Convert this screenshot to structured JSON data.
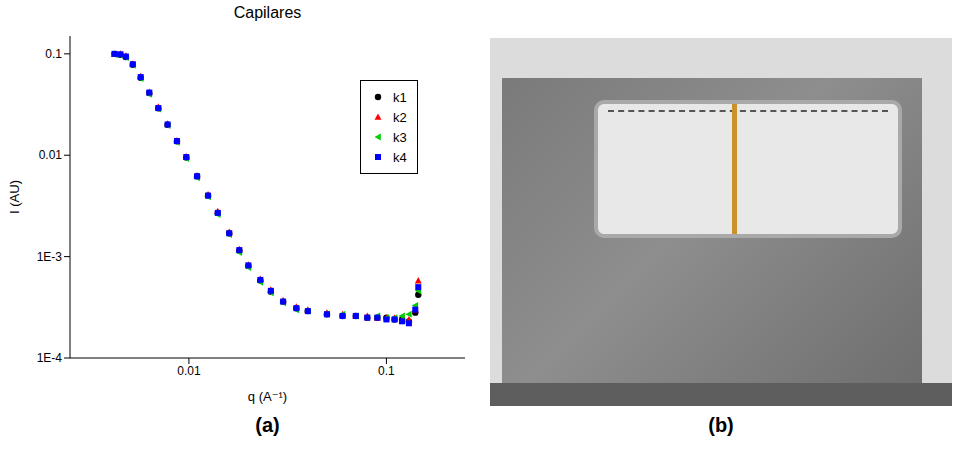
{
  "chart_data": {
    "type": "scatter",
    "title": "Capilares",
    "x_label": "q (A⁻¹)",
    "y_label": "I (AU)",
    "log": true,
    "grid": false,
    "legend": "upper right",
    "xlim": [
      0.0025,
      0.25
    ],
    "ylim": [
      0.0001,
      0.15
    ],
    "xticks": [
      0.01,
      0.1
    ],
    "yticks": [
      0.1,
      0.01,
      {
        "value": 0.001,
        "label": "1E-3"
      },
      {
        "value": 0.0001,
        "label": "1E-4"
      }
    ],
    "x": [
      0.0042,
      0.0045,
      0.0048,
      0.0052,
      0.0057,
      0.0063,
      0.007,
      0.0078,
      0.0087,
      0.0097,
      0.011,
      0.0125,
      0.014,
      0.016,
      0.018,
      0.02,
      0.023,
      0.026,
      0.03,
      0.035,
      0.04,
      0.05,
      0.06,
      0.07,
      0.08,
      0.09,
      0.1,
      0.11,
      0.12,
      0.13,
      0.14,
      0.145
    ],
    "series": [
      {
        "name": "k1",
        "color": "#000000",
        "marker": "circle",
        "values": [
          0.1,
          0.098,
          0.093,
          0.078,
          0.058,
          0.041,
          0.029,
          0.02,
          0.0137,
          0.0095,
          0.0062,
          0.004,
          0.0027,
          0.0017,
          0.00115,
          0.00081,
          0.00058,
          0.00045,
          0.00036,
          0.00031,
          0.00029,
          0.00027,
          0.00026,
          0.00026,
          0.00025,
          0.00025,
          0.00025,
          0.00024,
          0.00024,
          0.00023,
          0.00028,
          0.00042
        ]
      },
      {
        "name": "k2",
        "color": "#ff0000",
        "marker": "triangle",
        "values": [
          0.099,
          0.1,
          0.096,
          0.08,
          0.06,
          0.042,
          0.03,
          0.0205,
          0.014,
          0.0097,
          0.0063,
          0.0041,
          0.0028,
          0.00175,
          0.00118,
          0.00083,
          0.0006,
          0.00047,
          0.00037,
          0.00032,
          0.0003,
          0.00028,
          0.00027,
          0.00026,
          0.00026,
          0.00025,
          0.00025,
          0.00025,
          0.00024,
          0.00024,
          0.0003,
          0.00058
        ]
      },
      {
        "name": "k3",
        "color": "#00cc00",
        "marker": "triangle-left",
        "values": [
          0.098,
          0.097,
          0.092,
          0.077,
          0.057,
          0.04,
          0.0285,
          0.0196,
          0.0134,
          0.0093,
          0.006,
          0.0039,
          0.0026,
          0.00165,
          0.0011,
          0.00078,
          0.00056,
          0.00044,
          0.00035,
          0.0003,
          0.00029,
          0.00027,
          0.00027,
          0.00026,
          0.00025,
          0.00026,
          0.00025,
          0.00025,
          0.00026,
          0.00027,
          0.00033,
          0.00046
        ]
      },
      {
        "name": "k4",
        "color": "#0000ff",
        "marker": "square",
        "values": [
          0.1,
          0.099,
          0.094,
          0.079,
          0.059,
          0.0415,
          0.0292,
          0.0201,
          0.0138,
          0.0096,
          0.0062,
          0.004,
          0.0027,
          0.0017,
          0.00116,
          0.00082,
          0.00059,
          0.00046,
          0.00036,
          0.00031,
          0.00029,
          0.00027,
          0.00026,
          0.00026,
          0.00025,
          0.00025,
          0.00024,
          0.00024,
          0.00023,
          0.00022,
          0.0003,
          0.0005
        ]
      }
    ]
  },
  "panel_labels": [
    "(a)",
    "(b)"
  ]
}
